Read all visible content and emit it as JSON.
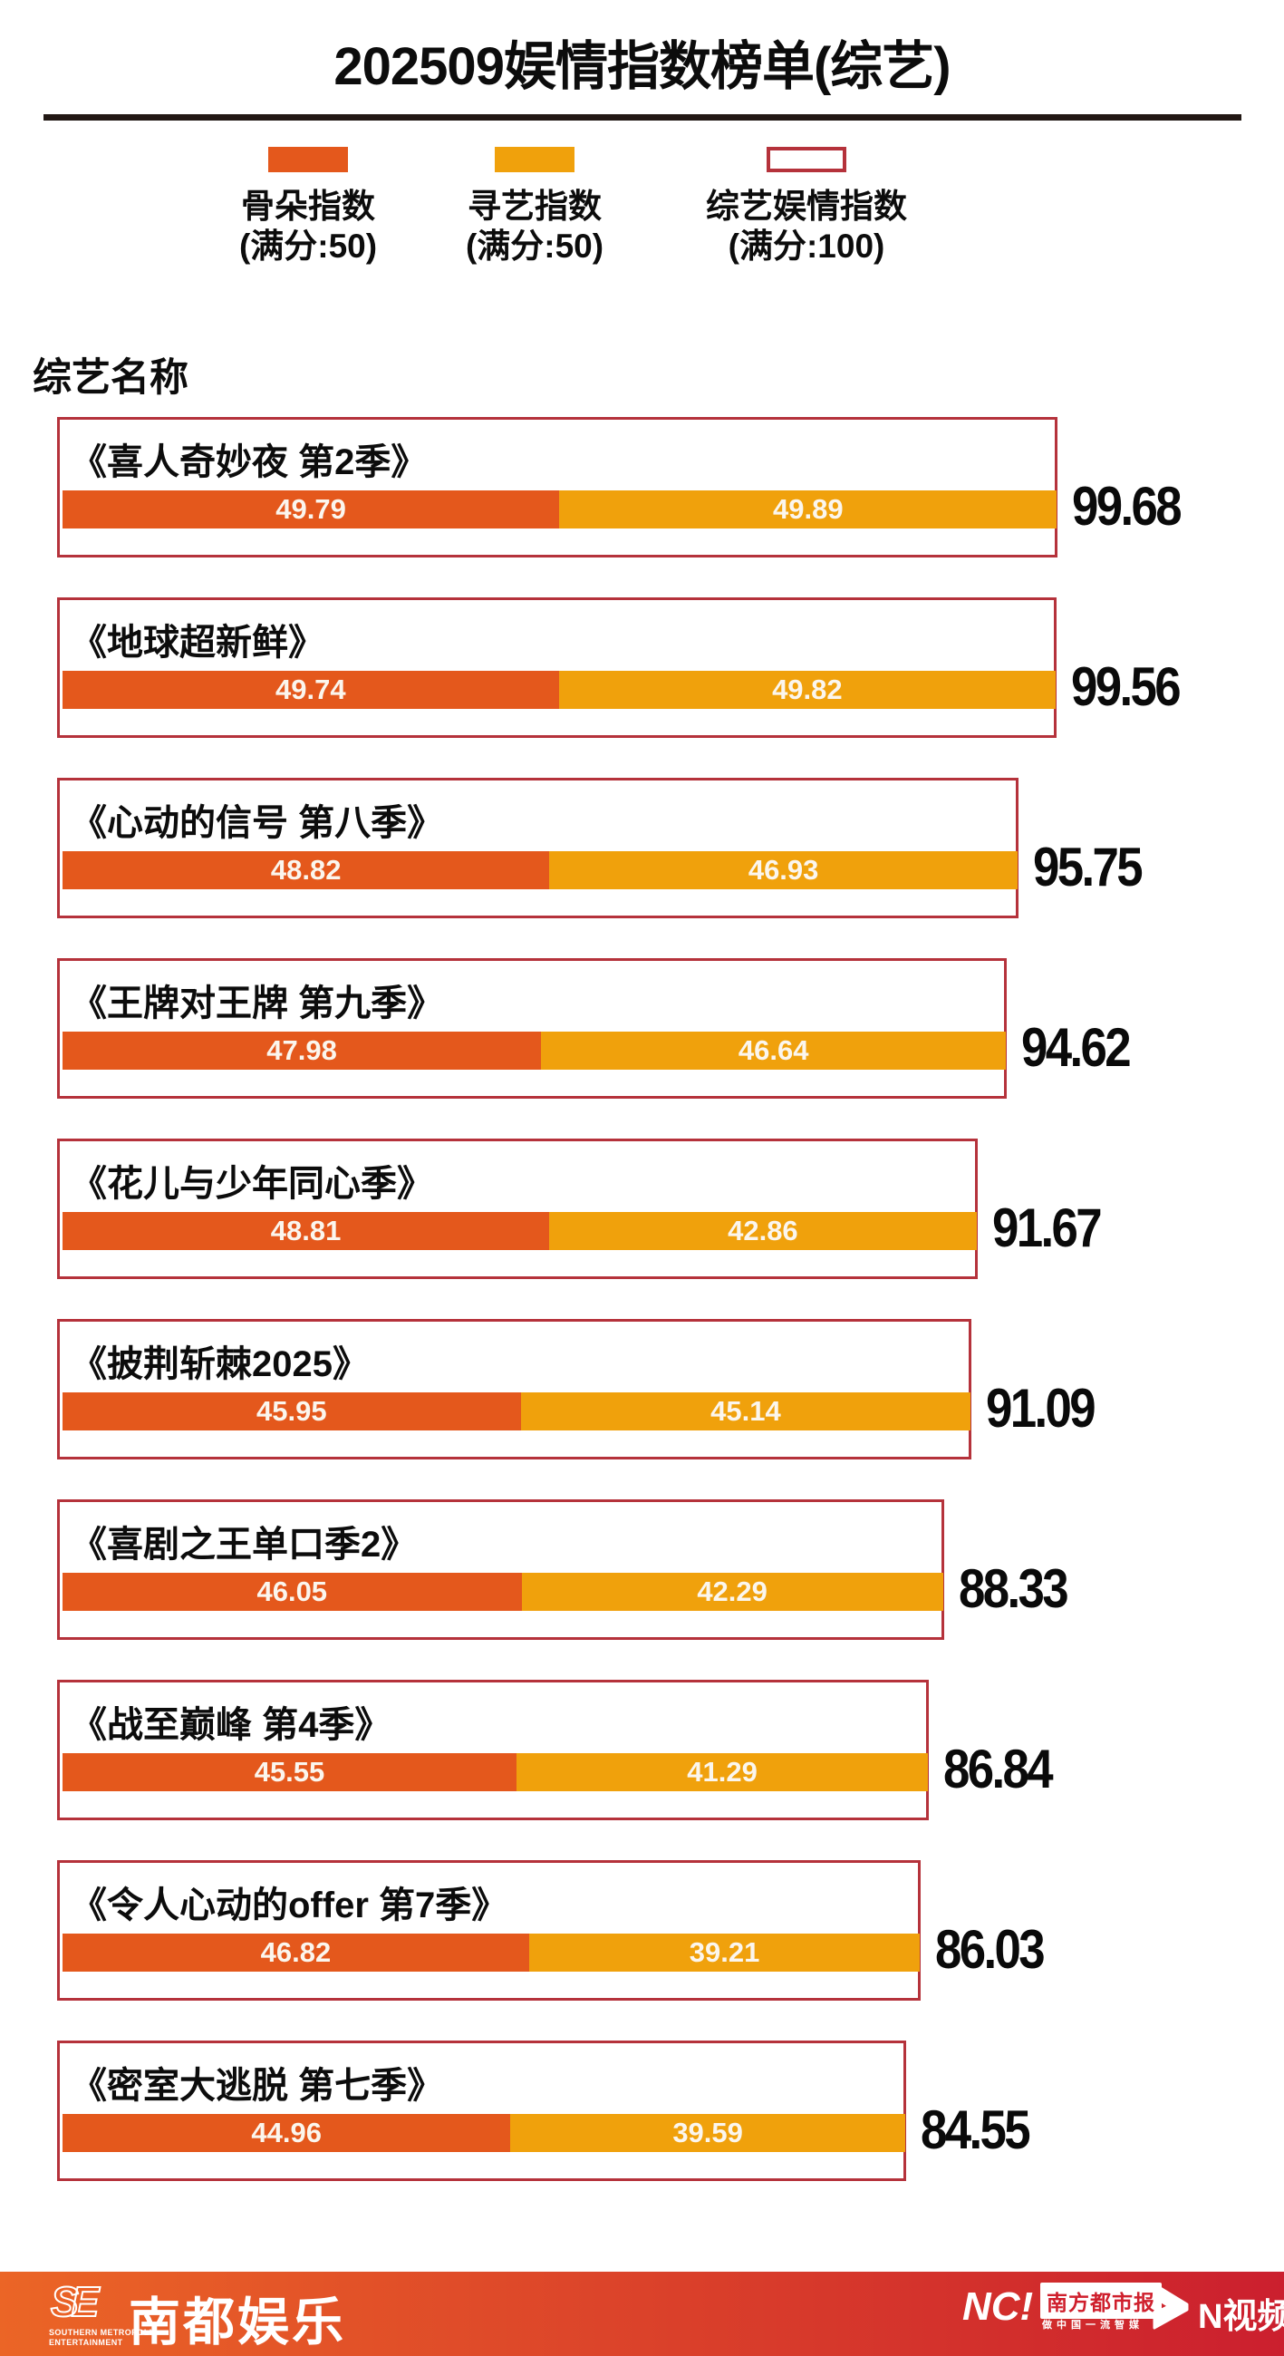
{
  "title": "202509娱情指数榜单(综艺)",
  "column_header": "综艺名称",
  "colors": {
    "gudo_segment": "#E4581C",
    "xunyi_segment": "#F0A10C",
    "box_border": "#B5323B",
    "footer_gradient_from": "#EB6526",
    "footer_gradient_to": "#CB1F2E",
    "divider": "#221814"
  },
  "legend": [
    {
      "label": "骨朵指数",
      "sub": "(满分:50)",
      "swatch": "gudo-filled"
    },
    {
      "label": "寻艺指数",
      "sub": "(满分:50)",
      "swatch": "xunyi-filled"
    },
    {
      "label": "综艺娱情指数",
      "sub": "(满分:100)",
      "swatch": "white-outlined"
    }
  ],
  "chart_data": {
    "type": "bar",
    "orientation": "horizontal",
    "stacked": true,
    "series_names": [
      "骨朵指数",
      "寻艺指数"
    ],
    "value_max": 100,
    "grid": false,
    "legend_position": "top",
    "rows": [
      {
        "name": "《喜人奇妙夜 第2季》",
        "gudo": 49.79,
        "xunyi": 49.89,
        "total": 99.68
      },
      {
        "name": "《地球超新鲜》",
        "gudo": 49.74,
        "xunyi": 49.82,
        "total": 99.56
      },
      {
        "name": "《心动的信号 第八季》",
        "gudo": 48.82,
        "xunyi": 46.93,
        "total": 95.75
      },
      {
        "name": "《王牌对王牌 第九季》",
        "gudo": 47.98,
        "xunyi": 46.64,
        "total": 94.62
      },
      {
        "name": "《花儿与少年同心季》",
        "gudo": 48.81,
        "xunyi": 42.86,
        "total": 91.67
      },
      {
        "name": "《披荆斩棘2025》",
        "gudo": 45.95,
        "xunyi": 45.14,
        "total": 91.09
      },
      {
        "name": "《喜剧之王单口季2》",
        "gudo": 46.05,
        "xunyi": 42.29,
        "total": 88.33
      },
      {
        "name": "《战至巅峰 第4季》",
        "gudo": 45.55,
        "xunyi": 41.29,
        "total": 86.84
      },
      {
        "name": "《令人心动的offer 第7季》",
        "gudo": 46.82,
        "xunyi": 39.21,
        "total": 86.03
      },
      {
        "name": "《密室大逃脱 第七季》",
        "gudo": 44.96,
        "xunyi": 39.59,
        "total": 84.55
      }
    ]
  },
  "footer": {
    "se_logo": "SE",
    "se_sub": "SOUTHERN METROPOLIS\nENTERTAINMENT",
    "brand": "南都娱乐",
    "nc_logo": "NC!",
    "paper_name": "南方都市报",
    "paper_slogan": "做中国一流智媒",
    "nvideo": "N视频"
  }
}
